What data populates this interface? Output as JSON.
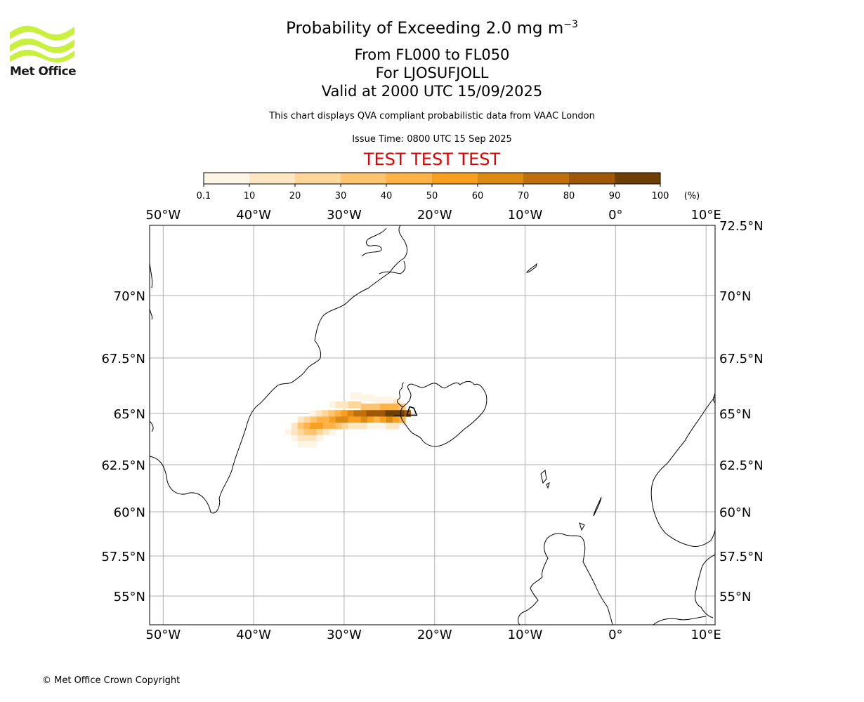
{
  "header": {
    "logo_text": "Met Office",
    "title_text": "Probability of Exceeding 2.0 mg m",
    "title_sup": "−3",
    "line_levels": "From FL000 to FL050",
    "line_location": "For LJOSUFJOLL",
    "line_valid": "Valid at 2000 UTC 15/09/2025",
    "disclaimer": "This chart displays QVA compliant probabilistic data from VAAC London",
    "issue_time": "Issue Time: 0800 UTC 15 Sep 2025",
    "test_banner": "TEST TEST TEST"
  },
  "colorbar": {
    "ticks": [
      "0.1",
      "10",
      "20",
      "30",
      "40",
      "50",
      "60",
      "70",
      "80",
      "90",
      "100"
    ],
    "unit": "(%)",
    "colors": [
      "#fff5e6",
      "#ffe6c2",
      "#ffd699",
      "#ffc470",
      "#ffb347",
      "#f7a020",
      "#dd8a12",
      "#c0700b",
      "#9e5806",
      "#6e3f05"
    ]
  },
  "map": {
    "lon_labels": [
      "50°W",
      "40°W",
      "30°W",
      "20°W",
      "10°W",
      "0°",
      "10°E"
    ],
    "lat_labels": [
      "72.5°N",
      "70°N",
      "67.5°N",
      "65°N",
      "62.5°N",
      "60°N",
      "57.5°N",
      "55°N"
    ],
    "colors": {
      "coast": "#000000",
      "grid": "#b0b0b0",
      "frame": "#000000"
    },
    "plume_cells": [
      {
        "lon": -29.0,
        "lat": 65.8,
        "p": 5
      },
      {
        "lon": -28.4,
        "lat": 65.8,
        "p": 5
      },
      {
        "lon": -27.7,
        "lat": 65.7,
        "p": 5
      },
      {
        "lon": -27.0,
        "lat": 65.7,
        "p": 5
      },
      {
        "lon": -26.3,
        "lat": 65.6,
        "p": 5
      },
      {
        "lon": -25.6,
        "lat": 65.6,
        "p": 5
      },
      {
        "lon": -24.9,
        "lat": 65.6,
        "p": 5
      },
      {
        "lon": -24.2,
        "lat": 65.5,
        "p": 15
      },
      {
        "lon": -31.3,
        "lat": 65.4,
        "p": 5
      },
      {
        "lon": -30.6,
        "lat": 65.4,
        "p": 15
      },
      {
        "lon": -29.9,
        "lat": 65.4,
        "p": 15
      },
      {
        "lon": -29.2,
        "lat": 65.4,
        "p": 25
      },
      {
        "lon": -28.5,
        "lat": 65.4,
        "p": 25
      },
      {
        "lon": -27.8,
        "lat": 65.3,
        "p": 35
      },
      {
        "lon": -27.1,
        "lat": 65.3,
        "p": 35
      },
      {
        "lon": -26.4,
        "lat": 65.3,
        "p": 35
      },
      {
        "lon": -25.7,
        "lat": 65.3,
        "p": 45
      },
      {
        "lon": -25.0,
        "lat": 65.3,
        "p": 45
      },
      {
        "lon": -24.3,
        "lat": 65.3,
        "p": 45
      },
      {
        "lon": -23.6,
        "lat": 65.3,
        "p": 35
      },
      {
        "lon": -33.5,
        "lat": 65.0,
        "p": 5
      },
      {
        "lon": -32.8,
        "lat": 65.0,
        "p": 15
      },
      {
        "lon": -32.1,
        "lat": 65.0,
        "p": 25
      },
      {
        "lon": -31.4,
        "lat": 65.0,
        "p": 35
      },
      {
        "lon": -30.7,
        "lat": 65.0,
        "p": 45
      },
      {
        "lon": -30.0,
        "lat": 65.0,
        "p": 55
      },
      {
        "lon": -29.3,
        "lat": 65.0,
        "p": 65
      },
      {
        "lon": -28.6,
        "lat": 65.0,
        "p": 75
      },
      {
        "lon": -27.9,
        "lat": 65.0,
        "p": 75
      },
      {
        "lon": -27.2,
        "lat": 65.0,
        "p": 85
      },
      {
        "lon": -26.5,
        "lat": 65.0,
        "p": 85
      },
      {
        "lon": -25.8,
        "lat": 65.0,
        "p": 85
      },
      {
        "lon": -25.1,
        "lat": 65.0,
        "p": 95
      },
      {
        "lon": -24.4,
        "lat": 65.0,
        "p": 95
      },
      {
        "lon": -23.7,
        "lat": 65.0,
        "p": 95
      },
      {
        "lon": -23.0,
        "lat": 65.0,
        "p": 85
      },
      {
        "lon": -34.8,
        "lat": 64.7,
        "p": 15
      },
      {
        "lon": -34.1,
        "lat": 64.7,
        "p": 25
      },
      {
        "lon": -33.4,
        "lat": 64.7,
        "p": 35
      },
      {
        "lon": -32.7,
        "lat": 64.7,
        "p": 45
      },
      {
        "lon": -32.0,
        "lat": 64.7,
        "p": 45
      },
      {
        "lon": -31.3,
        "lat": 64.7,
        "p": 55
      },
      {
        "lon": -30.6,
        "lat": 64.7,
        "p": 65
      },
      {
        "lon": -29.9,
        "lat": 64.7,
        "p": 65
      },
      {
        "lon": -29.2,
        "lat": 64.7,
        "p": 55
      },
      {
        "lon": -28.5,
        "lat": 64.7,
        "p": 55
      },
      {
        "lon": -27.8,
        "lat": 64.7,
        "p": 65
      },
      {
        "lon": -27.1,
        "lat": 64.7,
        "p": 55
      },
      {
        "lon": -26.4,
        "lat": 64.7,
        "p": 45
      },
      {
        "lon": -25.7,
        "lat": 64.7,
        "p": 55
      },
      {
        "lon": -25.0,
        "lat": 64.7,
        "p": 65
      },
      {
        "lon": -24.3,
        "lat": 64.7,
        "p": 55
      },
      {
        "lon": -23.6,
        "lat": 64.7,
        "p": 45
      },
      {
        "lon": -35.5,
        "lat": 64.4,
        "p": 15
      },
      {
        "lon": -34.8,
        "lat": 64.4,
        "p": 35
      },
      {
        "lon": -34.1,
        "lat": 64.4,
        "p": 45
      },
      {
        "lon": -33.4,
        "lat": 64.4,
        "p": 55
      },
      {
        "lon": -32.7,
        "lat": 64.4,
        "p": 55
      },
      {
        "lon": -32.0,
        "lat": 64.4,
        "p": 45
      },
      {
        "lon": -31.3,
        "lat": 64.4,
        "p": 45
      },
      {
        "lon": -30.6,
        "lat": 64.4,
        "p": 35
      },
      {
        "lon": -29.9,
        "lat": 64.4,
        "p": 25
      },
      {
        "lon": -29.2,
        "lat": 64.4,
        "p": 15
      },
      {
        "lon": -28.5,
        "lat": 64.4,
        "p": 15
      },
      {
        "lon": -27.8,
        "lat": 64.4,
        "p": 15
      },
      {
        "lon": -27.1,
        "lat": 64.4,
        "p": 5
      },
      {
        "lon": -26.4,
        "lat": 64.4,
        "p": 5
      },
      {
        "lon": -25.7,
        "lat": 64.4,
        "p": 5
      },
      {
        "lon": -25.0,
        "lat": 64.4,
        "p": 15
      },
      {
        "lon": -24.3,
        "lat": 64.4,
        "p": 15
      },
      {
        "lon": -36.2,
        "lat": 64.1,
        "p": 5
      },
      {
        "lon": -35.5,
        "lat": 64.1,
        "p": 15
      },
      {
        "lon": -34.8,
        "lat": 64.1,
        "p": 25
      },
      {
        "lon": -34.1,
        "lat": 64.1,
        "p": 35
      },
      {
        "lon": -33.4,
        "lat": 64.1,
        "p": 35
      },
      {
        "lon": -32.7,
        "lat": 64.1,
        "p": 25
      },
      {
        "lon": -32.0,
        "lat": 64.1,
        "p": 15
      },
      {
        "lon": -31.3,
        "lat": 64.1,
        "p": 5
      },
      {
        "lon": -35.5,
        "lat": 63.8,
        "p": 5
      },
      {
        "lon": -34.8,
        "lat": 63.8,
        "p": 15
      },
      {
        "lon": -34.1,
        "lat": 63.8,
        "p": 15
      },
      {
        "lon": -33.4,
        "lat": 63.8,
        "p": 15
      },
      {
        "lon": -32.7,
        "lat": 63.8,
        "p": 5
      },
      {
        "lon": -34.8,
        "lat": 63.5,
        "p": 5
      },
      {
        "lon": -34.1,
        "lat": 63.5,
        "p": 5
      },
      {
        "lon": -33.4,
        "lat": 63.5,
        "p": 5
      }
    ]
  },
  "footer": {
    "copyright": "© Met Office Crown Copyright"
  }
}
